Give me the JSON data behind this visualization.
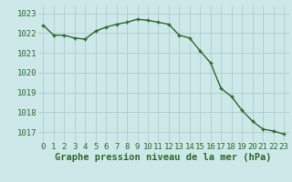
{
  "hours": [
    0,
    1,
    2,
    3,
    4,
    5,
    6,
    7,
    8,
    9,
    10,
    11,
    12,
    13,
    14,
    15,
    16,
    17,
    18,
    19,
    20,
    21,
    22,
    23
  ],
  "pressure": [
    1022.4,
    1021.9,
    1021.9,
    1021.75,
    1021.7,
    1022.1,
    1022.3,
    1022.45,
    1022.55,
    1022.7,
    1022.65,
    1022.55,
    1022.45,
    1021.9,
    1021.75,
    1021.1,
    1020.5,
    1019.2,
    1018.8,
    1018.1,
    1017.55,
    1017.15,
    1017.05,
    1016.9
  ],
  "line_color": "#2d6a2d",
  "marker": "+",
  "bg_color": "#cce8e8",
  "grid_color": "#aac8c8",
  "xlabel": "Graphe pression niveau de la mer (hPa)",
  "xlabel_color": "#2d6a2d",
  "yticks": [
    1017,
    1018,
    1019,
    1020,
    1021,
    1022,
    1023
  ],
  "ylim": [
    1016.5,
    1023.4
  ],
  "xlim": [
    -0.5,
    23.5
  ],
  "tick_color": "#2d6a2d",
  "tick_fontsize": 6.5,
  "xlabel_fontsize": 7.5,
  "linewidth": 1.0,
  "markersize": 3.5,
  "markeredgewidth": 1.0
}
